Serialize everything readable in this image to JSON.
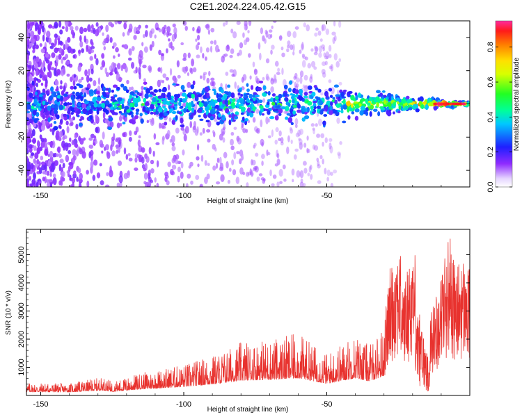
{
  "title": "C2E1.2024.224.05.42.G15",
  "colors": {
    "snr_line": "#e8322e"
  },
  "chart_data": [
    {
      "type": "heatmap",
      "xlabel": "Height of straight line (km)",
      "ylabel": "Frequency (Hz)",
      "xlim": [
        -155,
        0
      ],
      "ylim": [
        -50,
        50
      ],
      "xticks": [
        "-150",
        "-100",
        "-50"
      ],
      "yticks": [
        "-40",
        "-20",
        "0",
        "20",
        "40"
      ],
      "colorbar": {
        "label": "Normalized spectral amplitude",
        "range": [
          0,
          0.95
        ],
        "ticks": [
          "0.0",
          "0.2",
          "0.4",
          "0.6",
          "0.8"
        ]
      }
    },
    {
      "type": "line",
      "series": [
        {
          "color": "#e8322e"
        }
      ],
      "xlabel": "Height of straight line (km)",
      "ylabel": "SNR (10 * v/v)",
      "xlim": [
        -155,
        0
      ],
      "ylim": [
        0,
        5900
      ],
      "xticks": [
        "-150",
        "-100",
        "-50"
      ],
      "yticks": [
        "1000",
        "2000",
        "3000",
        "4000",
        "5000"
      ],
      "envelope_points": [
        [
          -155,
          450
        ],
        [
          -140,
          430
        ],
        [
          -128,
          650
        ],
        [
          -125,
          480
        ],
        [
          -115,
          800
        ],
        [
          -100,
          1100
        ],
        [
          -88,
          1500
        ],
        [
          -80,
          1900
        ],
        [
          -70,
          2000
        ],
        [
          -60,
          2200
        ],
        [
          -50,
          1500
        ],
        [
          -40,
          2200
        ],
        [
          -35,
          1800
        ],
        [
          -30,
          2500
        ],
        [
          -28,
          4500
        ],
        [
          -25,
          5600
        ],
        [
          -23,
          4000
        ],
        [
          -20,
          5400
        ],
        [
          -18,
          4800
        ],
        [
          -15,
          2500
        ],
        [
          -12,
          3500
        ],
        [
          -10,
          4500
        ],
        [
          -7,
          5900
        ],
        [
          -5,
          4500
        ],
        [
          -3,
          5000
        ],
        [
          0,
          4500
        ]
      ]
    }
  ]
}
